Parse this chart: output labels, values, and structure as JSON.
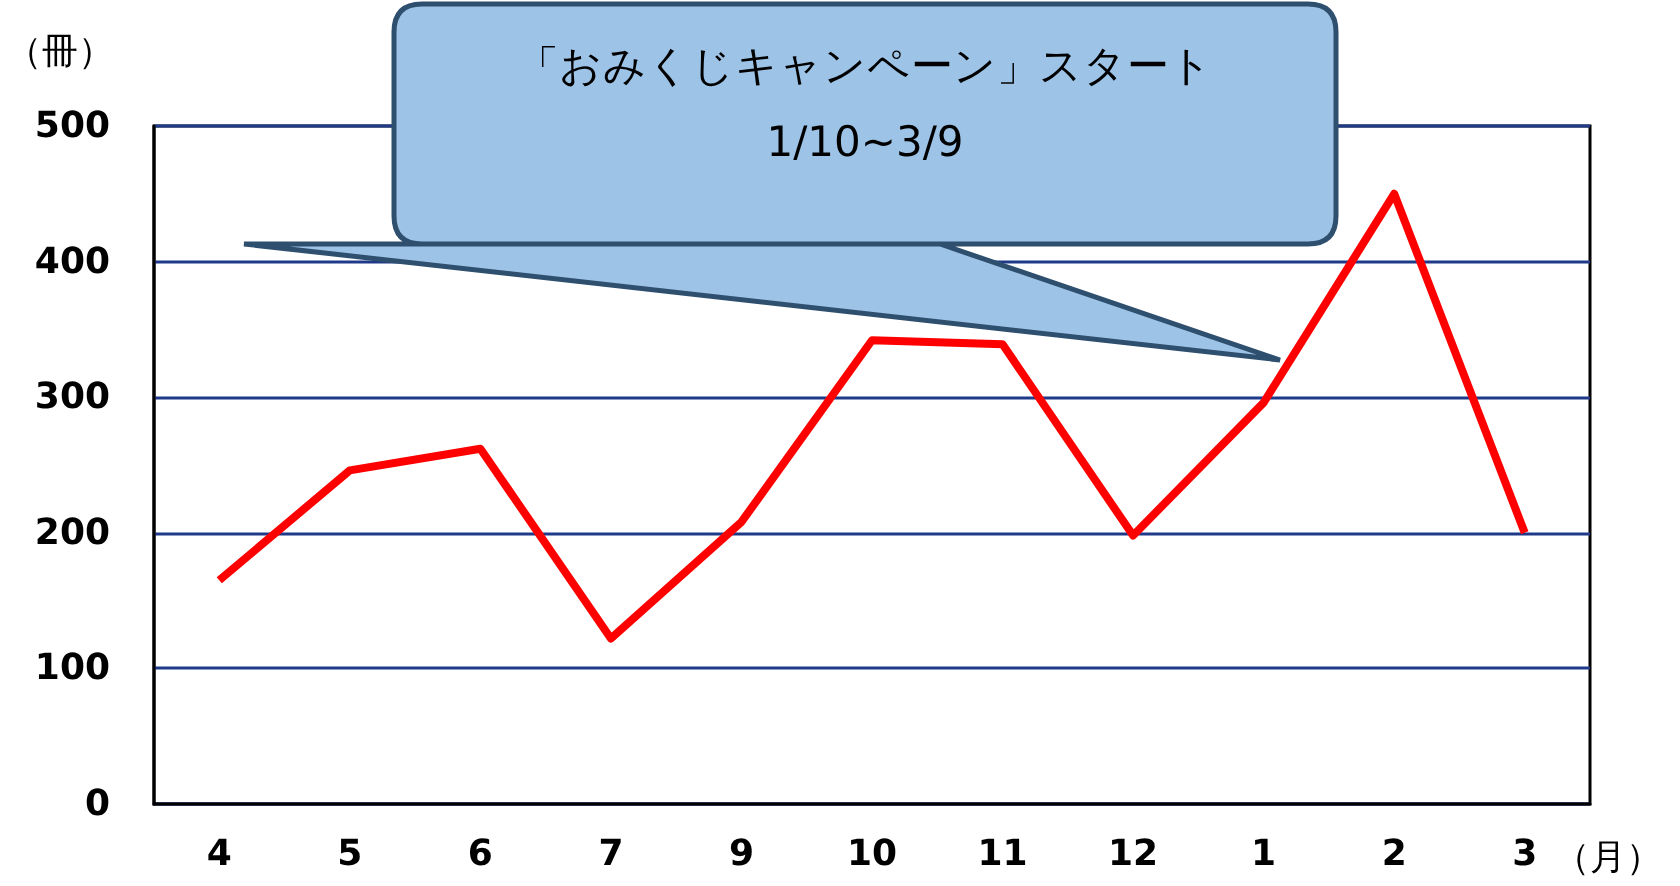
{
  "chart_data": {
    "type": "line",
    "categories": [
      "4",
      "5",
      "6",
      "7",
      "9",
      "10",
      "11",
      "12",
      "1",
      "2",
      "3"
    ],
    "series": [
      {
        "color": "#ff0000",
        "values": [
          165,
          246,
          262,
          122,
          208,
          342,
          339,
          198,
          296,
          450,
          200
        ]
      }
    ],
    "xlabel": "（月）",
    "ylabel": "（冊）",
    "ylim": [
      0,
      500
    ],
    "yticks": [
      0,
      100,
      200,
      300,
      400,
      500
    ],
    "grid": "y",
    "marker": "none",
    "line_style": "solid",
    "annotations": [
      "「おみくじキャンペーン」スタート\n1/10~3/9"
    ]
  }
}
